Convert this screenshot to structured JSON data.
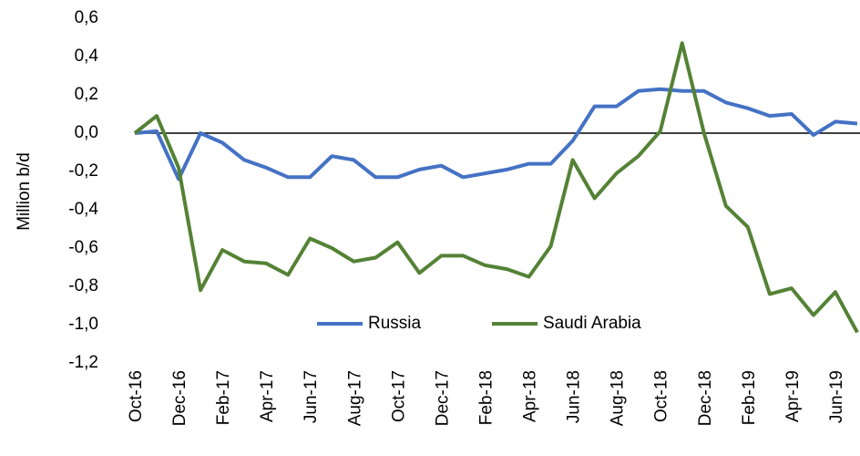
{
  "chart_data": {
    "type": "line",
    "y_label": "Million b/d",
    "categories": [
      "Oct-16",
      null,
      "Dec-16",
      null,
      "Feb-17",
      null,
      "Apr-17",
      null,
      "Jun-17",
      null,
      "Aug-17",
      null,
      "Oct-17",
      null,
      "Dec-17",
      null,
      "Feb-18",
      null,
      "Apr-18",
      null,
      "Jun-18",
      null,
      "Aug-18",
      null,
      "Oct-18",
      null,
      "Dec-18",
      null,
      "Feb-19",
      null,
      "Apr-19",
      null,
      "Jun-19",
      null
    ],
    "series": [
      {
        "name": "Russia",
        "color": "#4472c4",
        "values": [
          0.0,
          0.01,
          -0.24,
          0.0,
          -0.05,
          -0.14,
          -0.18,
          -0.23,
          -0.23,
          -0.12,
          -0.14,
          -0.23,
          -0.23,
          -0.19,
          -0.17,
          -0.23,
          -0.21,
          -0.19,
          -0.16,
          -0.16,
          -0.04,
          0.14,
          0.14,
          0.22,
          0.23,
          0.22,
          0.22,
          0.16,
          0.13,
          0.09,
          0.1,
          -0.01,
          0.06,
          0.05
        ]
      },
      {
        "name": "Saudi Arabia",
        "color": "#548235",
        "values": [
          0.0,
          0.09,
          -0.18,
          -0.82,
          -0.61,
          -0.67,
          -0.68,
          -0.74,
          -0.55,
          -0.6,
          -0.67,
          -0.65,
          -0.57,
          -0.73,
          -0.64,
          -0.64,
          -0.69,
          -0.71,
          -0.75,
          -0.59,
          -0.14,
          -0.34,
          -0.21,
          -0.12,
          0.01,
          0.47,
          0.0,
          -0.38,
          -0.49,
          -0.84,
          -0.81,
          -0.95,
          -0.83,
          -1.04
        ]
      }
    ],
    "ylim": [
      -1.2,
      0.6
    ],
    "yticks": [
      {
        "value": 0.6,
        "label": "0,6"
      },
      {
        "value": 0.4,
        "label": "0,4"
      },
      {
        "value": 0.2,
        "label": "0,2"
      },
      {
        "value": 0,
        "label": "0,0"
      },
      {
        "value": -0.2,
        "label": "-0,2"
      },
      {
        "value": -0.4,
        "label": "-0,4"
      },
      {
        "value": -0.6,
        "label": "-0,6"
      },
      {
        "value": -0.8,
        "label": "-0,8"
      },
      {
        "value": -1.0,
        "label": "-1,0"
      },
      {
        "value": -1.2,
        "label": "-1,2"
      }
    ],
    "grid": false,
    "legend": "bottom"
  }
}
